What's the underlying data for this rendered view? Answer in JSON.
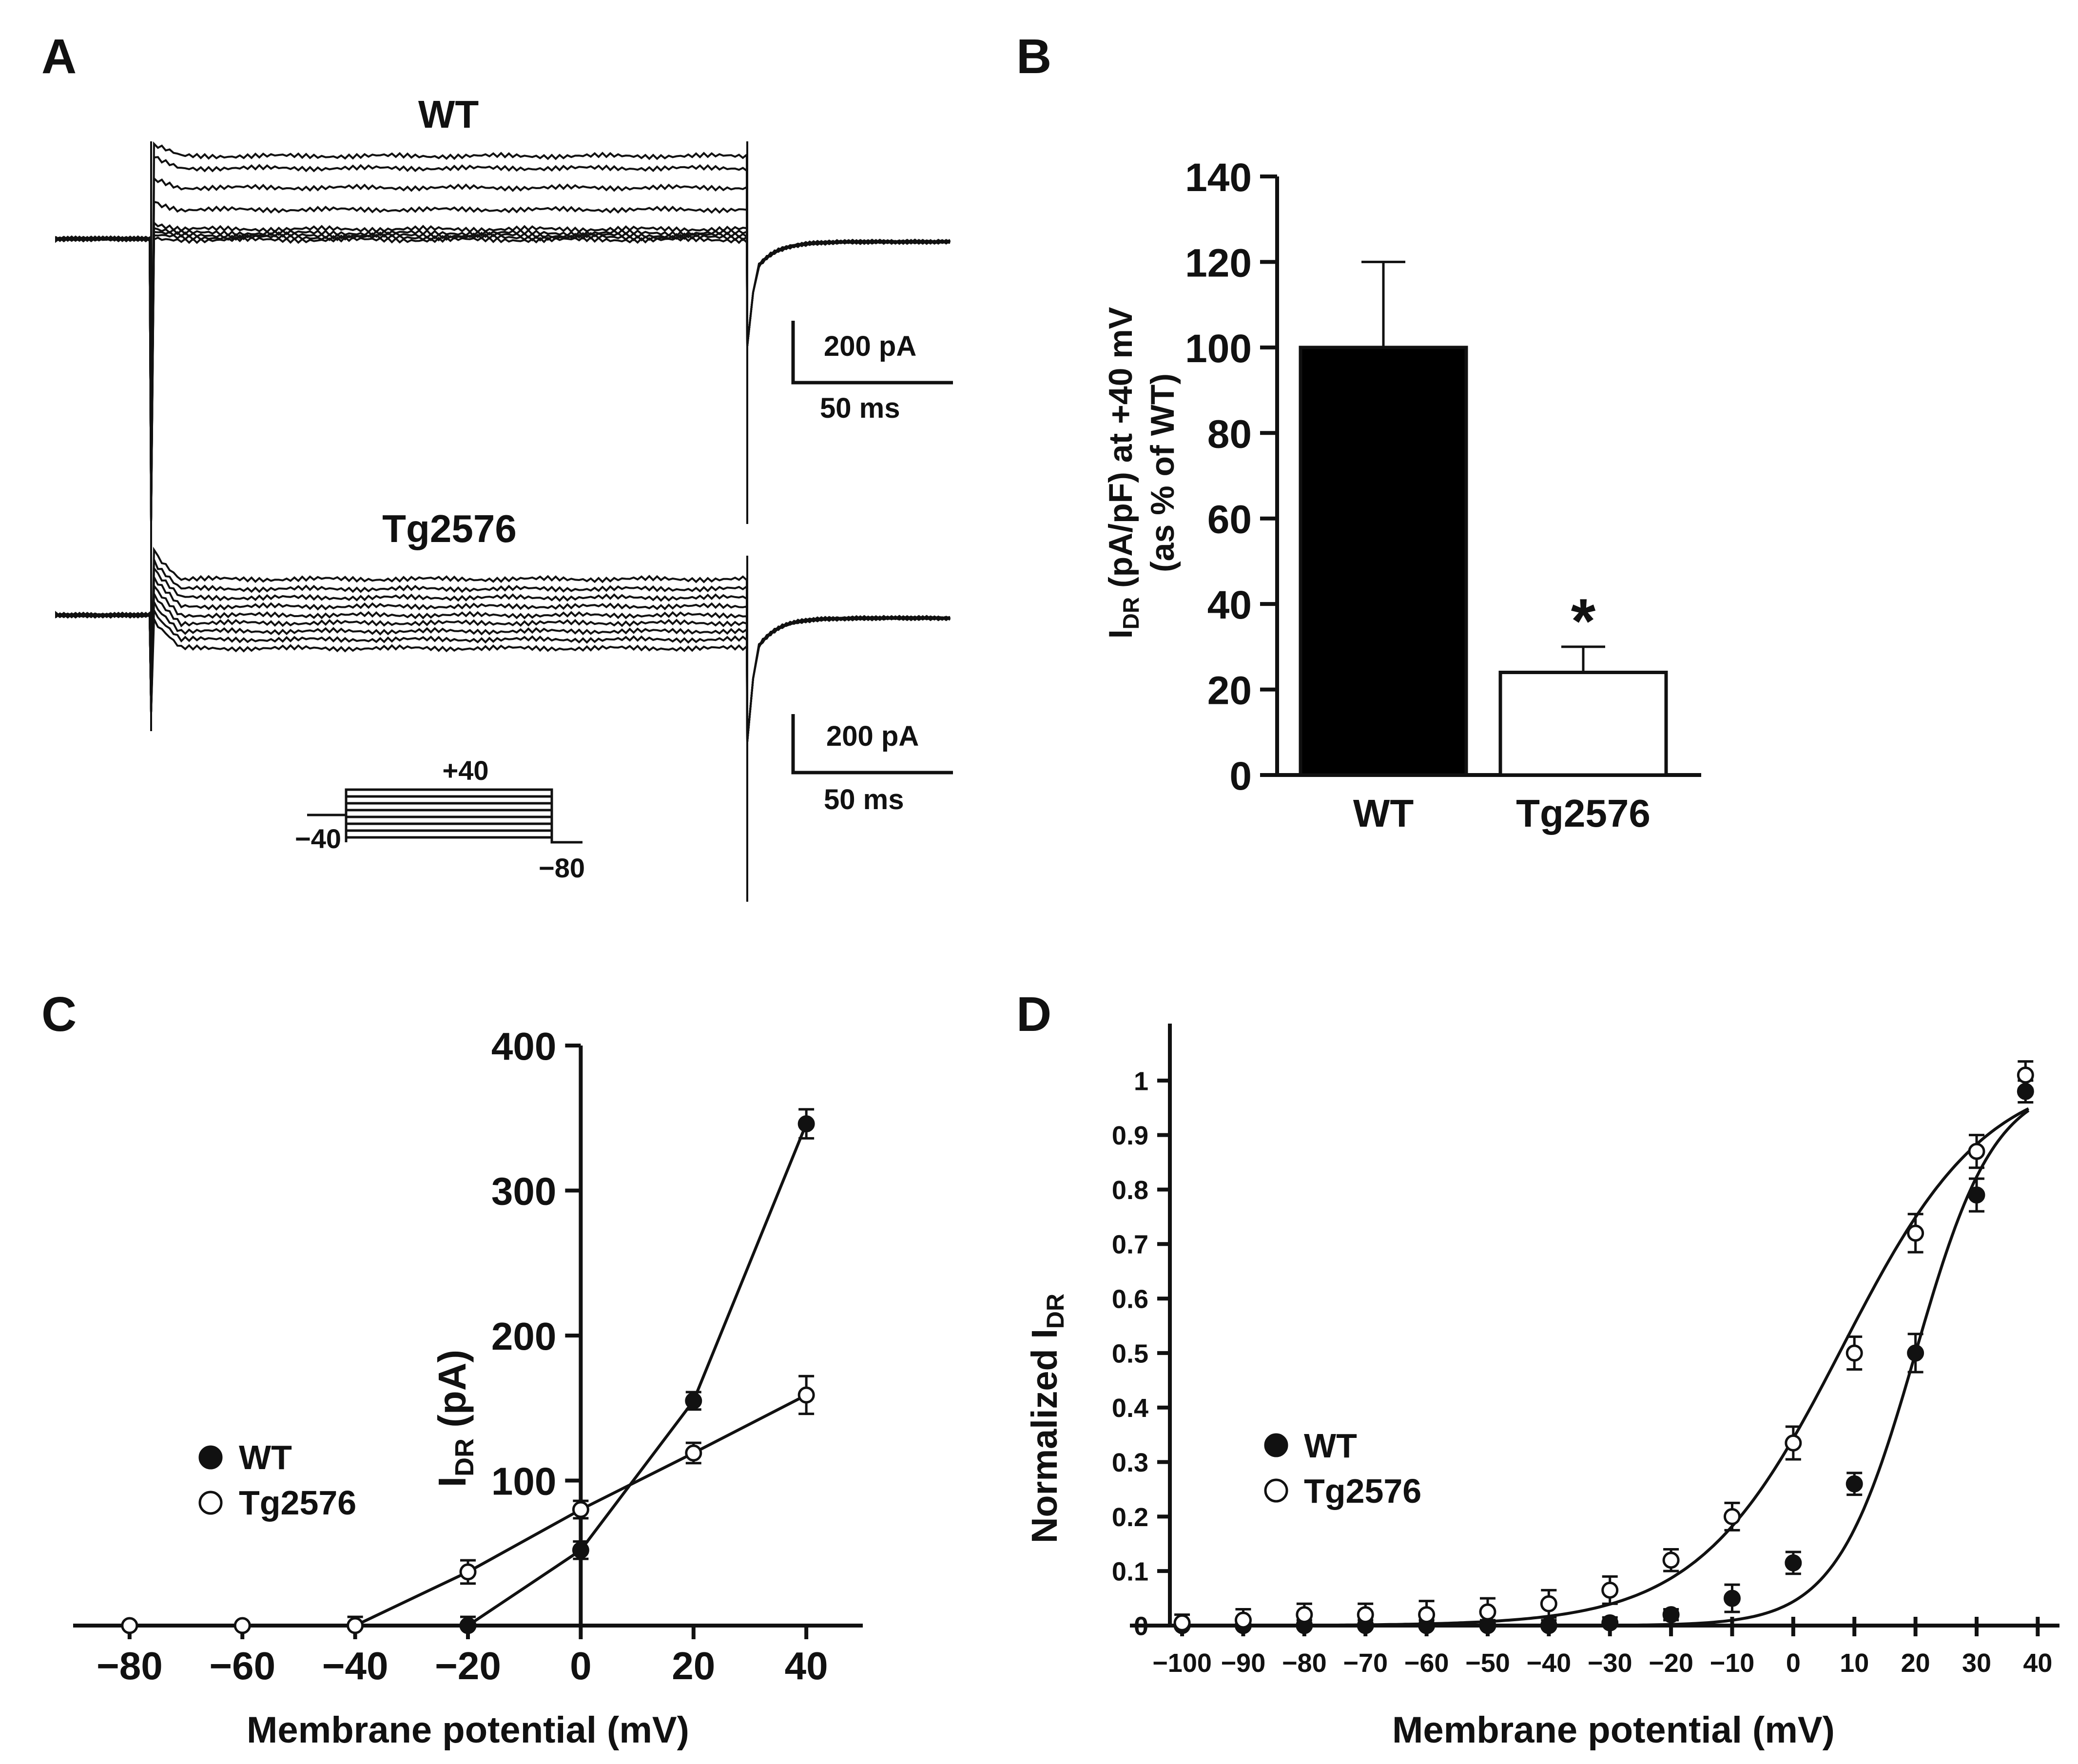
{
  "panels": {
    "A": {
      "letter": "A",
      "wt_label": "WT",
      "tg_label": "Tg2576",
      "scale_current": "200 pA",
      "scale_time": "50 ms",
      "protocol_top": "+40",
      "protocol_hold": "−40",
      "protocol_bottom": "−80"
    },
    "B": {
      "letter": "B"
    },
    "C": {
      "letter": "C"
    },
    "D": {
      "letter": "D"
    }
  },
  "chart_data": [
    {
      "id": "B",
      "type": "bar",
      "categories": [
        "WT",
        "Tg2576"
      ],
      "values": [
        100,
        24
      ],
      "errors": [
        20,
        6
      ],
      "fills": [
        "#000000",
        "#ffffff"
      ],
      "ylim": [
        0,
        140
      ],
      "yticks": [
        0,
        20,
        40,
        60,
        80,
        100,
        120,
        140
      ],
      "ytick_labels": [
        "0",
        "20",
        "40",
        "60",
        "80",
        "100",
        "120",
        "140"
      ],
      "ylabel_main": "I",
      "ylabel_sub": "DR",
      "ylabel_rest": "  (pA/pF) at +40  mV",
      "ylabel_line2": "(as % of WT)",
      "significance": "*"
    },
    {
      "id": "C",
      "type": "line",
      "xlim": [
        -85,
        45
      ],
      "ylim": [
        0,
        400
      ],
      "xticks": [
        -80,
        -60,
        -40,
        -20,
        0,
        20,
        40
      ],
      "xtick_labels": [
        "−80",
        "−60",
        "−40",
        "−20",
        "0",
        "20",
        "40"
      ],
      "yticks": [
        100,
        200,
        300,
        400
      ],
      "ytick_labels": [
        "100",
        "200",
        "300",
        "400"
      ],
      "xlabel": "Membrane potential (mV)",
      "ylabel_main": "I",
      "ylabel_sub": "DR",
      "ylabel_rest": " (pA)",
      "series": [
        {
          "name": "WT",
          "filled": true,
          "x": [
            -20,
            0,
            20,
            40
          ],
          "y": [
            0,
            52,
            155,
            346
          ],
          "err": [
            6,
            6,
            6,
            10
          ]
        },
        {
          "name": "Tg2576",
          "filled": false,
          "x": [
            -80,
            -60,
            -40,
            -20,
            0,
            20,
            40
          ],
          "y": [
            0,
            0,
            0,
            37,
            80,
            119,
            159
          ],
          "err": [
            0,
            0,
            6,
            8,
            6,
            7,
            13
          ]
        }
      ],
      "legend": [
        {
          "label": "WT",
          "filled": true
        },
        {
          "label": "Tg2576",
          "filled": false
        }
      ]
    },
    {
      "id": "D",
      "type": "line",
      "xlim": [
        -102,
        43
      ],
      "ylim": [
        0,
        1.1
      ],
      "xticks": [
        -100,
        -90,
        -80,
        -70,
        -60,
        -50,
        -40,
        -30,
        -20,
        -10,
        0,
        10,
        20,
        30,
        40
      ],
      "xtick_labels": [
        "−100",
        "−90",
        "−80",
        "−70",
        "−60",
        "−50",
        "−40",
        "−30",
        "−20",
        "−10",
        "0",
        "10",
        "20",
        "30",
        "40"
      ],
      "yticks": [
        0,
        0.1,
        0.2,
        0.3,
        0.4,
        0.5,
        0.6,
        0.7,
        0.8,
        0.9,
        1
      ],
      "ytick_labels": [
        "0",
        "0.1",
        "0.2",
        "0.3",
        "0.4",
        "0.5",
        "0.6",
        "0.7",
        "0.8",
        "0.9",
        "1"
      ],
      "xlabel": "Membrane potential (mV)",
      "ylabel_main": "Normalized I",
      "ylabel_sub": "DR",
      "series": [
        {
          "name": "WT",
          "filled": true,
          "x": [
            -100,
            -90,
            -80,
            -70,
            -60,
            -50,
            -40,
            -30,
            -20,
            -10,
            0,
            10,
            20,
            30,
            38
          ],
          "y": [
            0,
            0,
            0,
            0,
            0,
            0,
            0,
            0.005,
            0.02,
            0.05,
            0.115,
            0.26,
            0.5,
            0.79,
            0.98
          ],
          "err": [
            0.005,
            0.005,
            0.01,
            0.01,
            0.01,
            0.01,
            0.01,
            0.01,
            0.01,
            0.025,
            0.02,
            0.02,
            0.035,
            0.03,
            0.02
          ]
        },
        {
          "name": "Tg2576",
          "filled": false,
          "x": [
            -100,
            -90,
            -80,
            -70,
            -60,
            -50,
            -40,
            -30,
            -20,
            -10,
            0,
            10,
            20,
            30,
            38
          ],
          "y": [
            0.005,
            0.01,
            0.02,
            0.02,
            0.02,
            0.025,
            0.04,
            0.065,
            0.12,
            0.2,
            0.335,
            0.5,
            0.72,
            0.87,
            1.01
          ],
          "err": [
            0.015,
            0.02,
            0.02,
            0.02,
            0.025,
            0.025,
            0.025,
            0.025,
            0.02,
            0.025,
            0.03,
            0.03,
            0.035,
            0.03,
            0.025
          ]
        }
      ],
      "fits": [
        {
          "name": "WT",
          "v50": 20,
          "k": 6.5,
          "amp": 1.0
        },
        {
          "name": "Tg2576",
          "v50": 8,
          "k": 11.8,
          "amp": 1.02
        }
      ],
      "legend": [
        {
          "label": "WT",
          "filled": true
        },
        {
          "label": "Tg2576",
          "filled": false
        }
      ]
    }
  ]
}
